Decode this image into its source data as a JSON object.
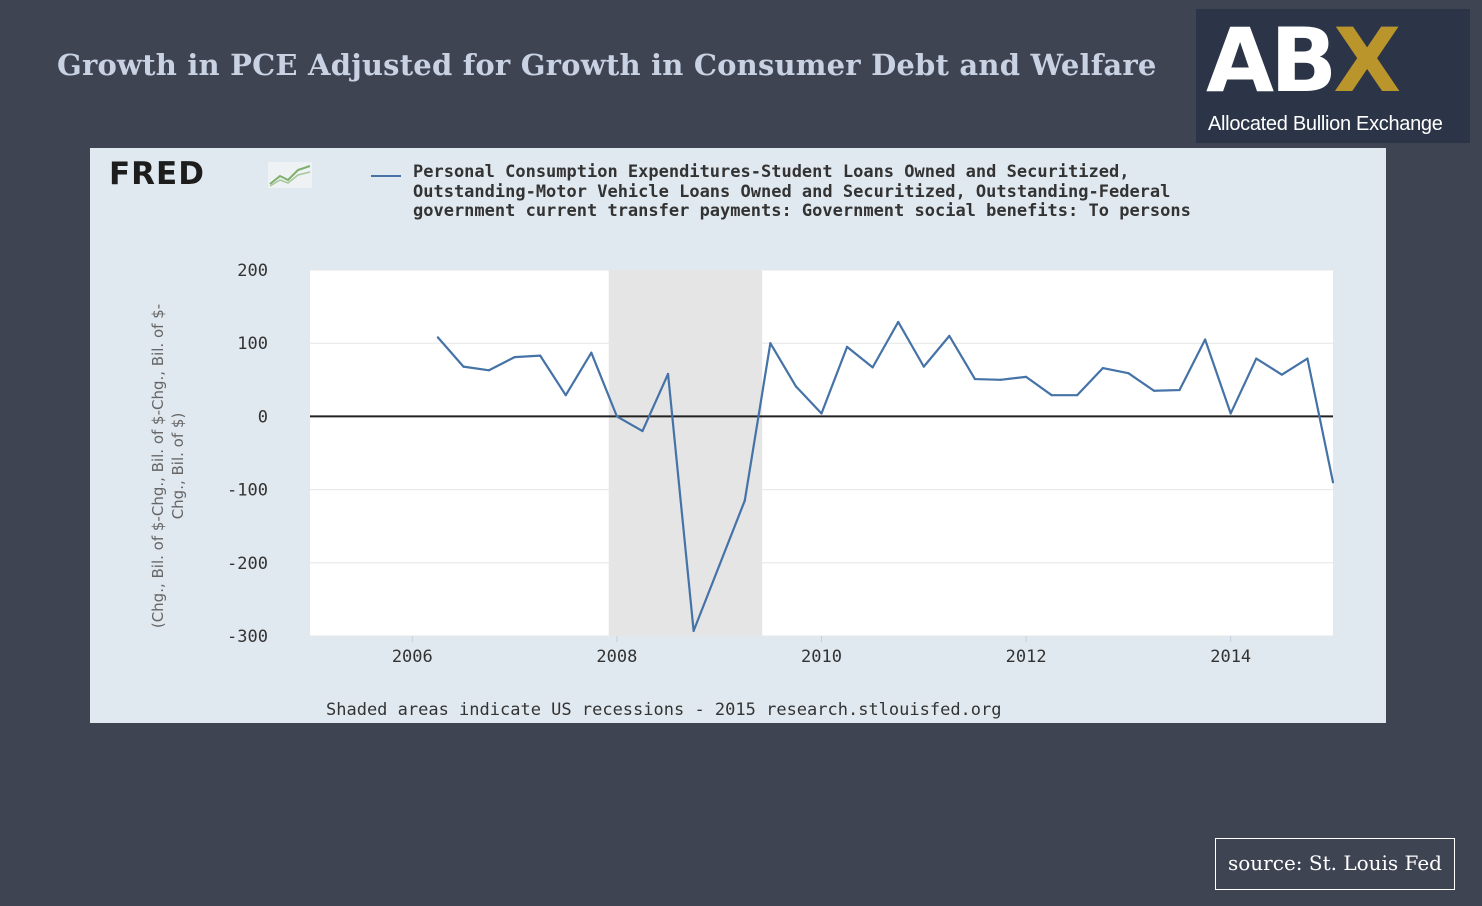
{
  "slide": {
    "title": "Growth in PCE Adjusted for Growth in Consumer Debt and Welfare",
    "source": "source: St. Louis Fed"
  },
  "logo": {
    "letters_main": "AB",
    "letters_accent": "X",
    "tagline": "Allocated Bullion Exchange",
    "accent_color": "#b9952c"
  },
  "fred": {
    "logo_text": "FRED"
  },
  "colors": {
    "background": "#3f4453",
    "panel": "#e1e9f0",
    "series": "#4572a7",
    "recession": "#e5e5e5"
  },
  "chart_data": {
    "type": "line",
    "title": "",
    "xlabel": "",
    "ylabel": "(Chg., Bil. of $-Chg., Bil. of $-Chg., Bil. of $-Chg., Bil. of $)",
    "ylim": [
      -300,
      200
    ],
    "xlim": [
      2005.0,
      2015.0
    ],
    "x_ticks": [
      "2006",
      "2008",
      "2010",
      "2012",
      "2014"
    ],
    "y_ticks": [
      "200",
      "100",
      "0",
      "-100",
      "-200",
      "-300"
    ],
    "recession_shading": [
      [
        2007.92,
        2009.42
      ]
    ],
    "legend_position": "top",
    "footnote": "Shaded areas indicate US recessions - 2015 research.stlouisfed.org",
    "series": [
      {
        "name": "Personal Consumption Expenditures-Student Loans Owned and Securitized, Outstanding-Motor Vehicle Loans Owned and Securitized, Outstanding-Federal government current transfer payments: Government social benefits: To persons",
        "x": [
          "2006-04-01",
          "2006-07-01",
          "2006-10-01",
          "2007-01-01",
          "2007-04-01",
          "2007-07-01",
          "2007-10-01",
          "2008-01-01",
          "2008-04-01",
          "2008-07-01",
          "2008-10-01",
          "2009-01-01",
          "2009-04-01",
          "2009-07-01",
          "2009-10-01",
          "2010-01-01",
          "2010-04-01",
          "2010-07-01",
          "2010-10-01",
          "2011-01-01",
          "2011-04-01",
          "2011-07-01",
          "2011-10-01",
          "2012-01-01",
          "2012-04-01",
          "2012-07-01",
          "2012-10-01",
          "2013-01-01",
          "2013-04-01",
          "2013-07-01",
          "2013-10-01",
          "2014-01-01",
          "2014-04-01",
          "2014-07-01",
          "2014-10-01",
          "2015-01-01"
        ],
        "values": [
          108,
          68,
          63,
          81,
          83,
          29,
          87,
          0,
          -20,
          58,
          -293,
          -204,
          -115,
          100,
          41,
          4,
          95,
          67,
          129,
          68,
          110,
          51,
          50,
          54,
          29,
          29,
          66,
          59,
          35,
          36,
          105,
          4,
          79,
          57,
          79,
          -90
        ]
      }
    ]
  }
}
